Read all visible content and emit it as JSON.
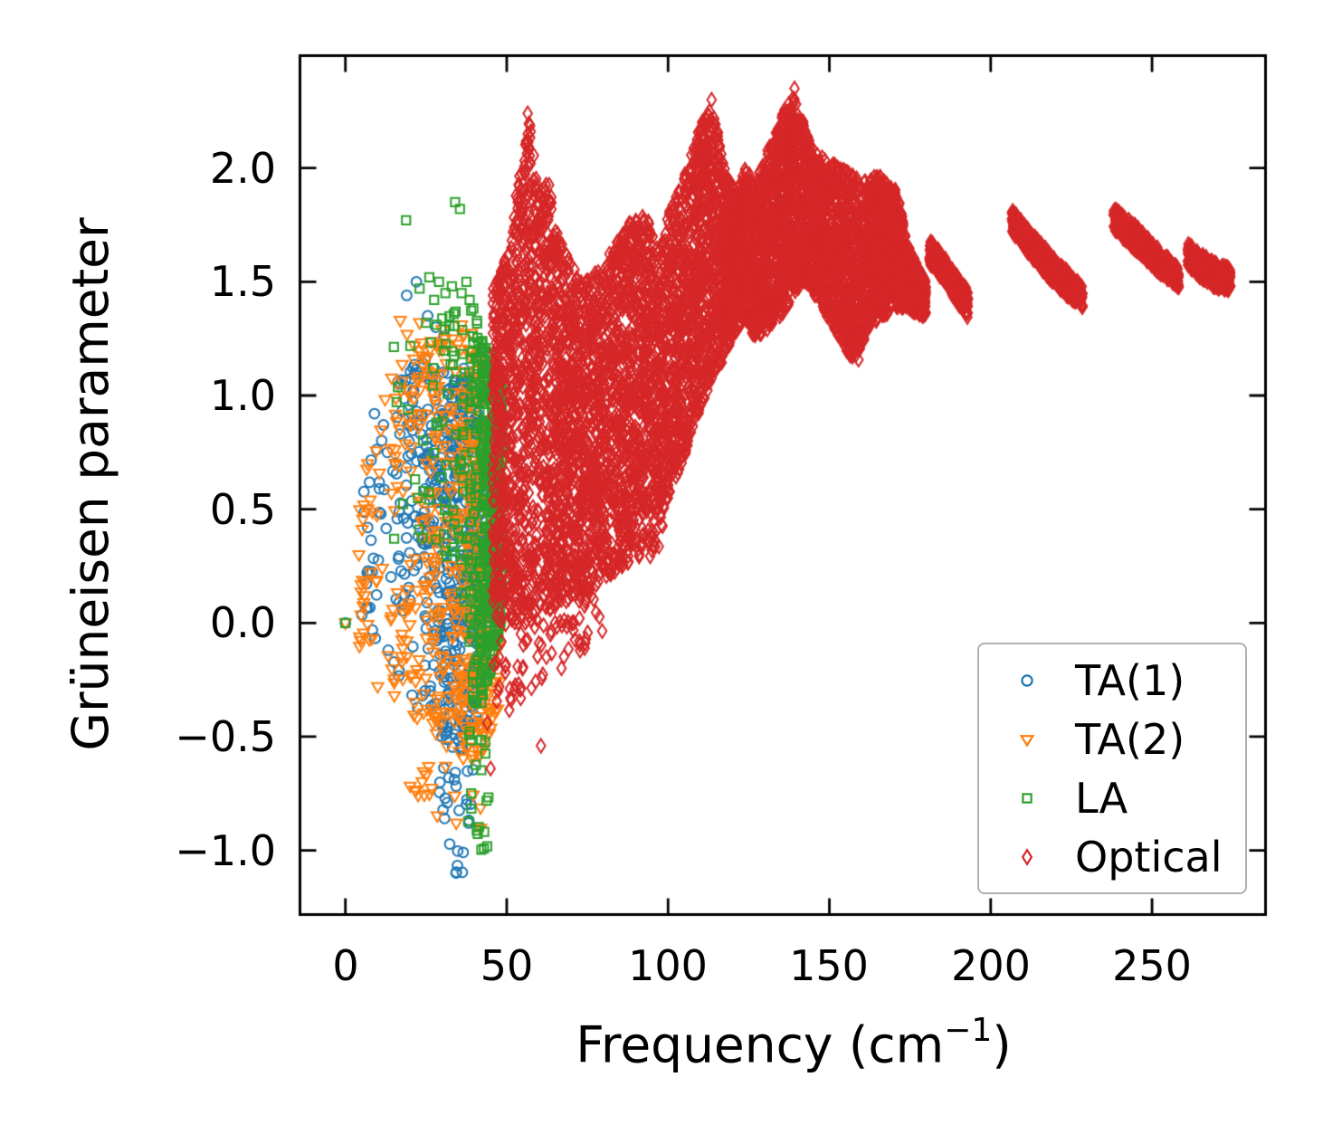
{
  "chart_data": {
    "type": "scatter",
    "title": "",
    "xlabel": {
      "prefix": "Frequency (cm",
      "sup": "−1",
      "suffix": ")"
    },
    "ylabel": "Grüneisen parameter",
    "axes": {
      "xlim": [
        -14.5,
        285.6
      ],
      "ylim": [
        -1.288,
        2.5
      ],
      "xticks": [
        0,
        50,
        100,
        150,
        200,
        250
      ],
      "xtick_labels": [
        "0",
        "50",
        "100",
        "150",
        "200",
        "250"
      ],
      "yticks": [
        2.0,
        1.5,
        1.0,
        0.5,
        0.0,
        -0.5,
        -1.0
      ],
      "ytick_labels": [
        "2.0",
        "1.5",
        "1.0",
        "0.5",
        "0.0",
        "−0.5",
        "−1.0"
      ],
      "grid": false,
      "tick_direction": "in",
      "spine_color": "#000000"
    },
    "legend": {
      "position": "lower right",
      "border_color": "#b0b0b0"
    },
    "series": [
      {
        "name": "TA(1)",
        "marker": "circle",
        "color": "#1f77b4",
        "seed": 7,
        "points": [
          [
            0,
            0
          ],
          [
            19,
            1.44
          ],
          [
            22,
            1.5
          ],
          [
            25.5,
            1.35
          ],
          [
            28,
            1.3
          ],
          [
            30.5,
            1.26
          ],
          [
            9,
            0.92
          ],
          [
            11,
            0.48
          ],
          [
            7.5,
            0.22
          ],
          [
            13,
            0.75
          ]
        ],
        "bands": [
          {
            "x": [
              5,
              15
            ],
            "lo": [
              0.0,
              -0.2
            ],
            "hi": [
              0.6,
              1.05
            ],
            "n": 30
          },
          {
            "x": [
              15,
              24
            ],
            "lo": [
              -0.2,
              -0.42
            ],
            "hi": [
              1.05,
              1.18
            ],
            "n": 75
          },
          {
            "x": [
              24,
              31
            ],
            "lo": [
              -0.42,
              -0.52
            ],
            "hi": [
              1.18,
              1.15
            ],
            "n": 120
          },
          {
            "x": [
              31,
              37
            ],
            "lo": [
              -0.55,
              -0.58
            ],
            "hi": [
              1.15,
              1.12
            ],
            "n": 170
          },
          {
            "x": [
              37,
              43.5
            ],
            "lo": [
              -0.58,
              -0.35
            ],
            "hi": [
              1.12,
              0.92
            ],
            "n": 175
          },
          {
            "x": [
              29,
              35,
              41
            ],
            "lo": [
              -0.8,
              -1.16,
              -1.0
            ],
            "hi": [
              -0.52,
              -0.6,
              -0.62
            ],
            "n": 26
          }
        ]
      },
      {
        "name": "TA(2)",
        "marker": "triangle-down",
        "color": "#ff7f0e",
        "seed": 13,
        "points": [
          [
            0,
            0
          ],
          [
            17,
            1.33
          ],
          [
            23,
            1.32
          ],
          [
            30,
            1.29
          ],
          [
            36,
            1.31
          ],
          [
            44,
            1.12
          ],
          [
            6,
            0.12
          ],
          [
            10,
            -0.28
          ],
          [
            47,
            0.8
          ]
        ],
        "bands": [
          {
            "x": [
              4,
              14
            ],
            "lo": [
              -0.1,
              -0.32
            ],
            "hi": [
              0.65,
              1.1
            ],
            "n": 35
          },
          {
            "x": [
              14,
              24
            ],
            "lo": [
              -0.35,
              -0.5
            ],
            "hi": [
              1.28,
              1.3
            ],
            "n": 80
          },
          {
            "x": [
              24,
              33
            ],
            "lo": [
              -0.5,
              -0.55
            ],
            "hi": [
              1.3,
              1.27
            ],
            "n": 110
          },
          {
            "x": [
              33,
              41
            ],
            "lo": [
              -0.58,
              -0.62
            ],
            "hi": [
              1.27,
              1.28
            ],
            "n": 170
          },
          {
            "x": [
              41,
              48
            ],
            "lo": [
              -0.62,
              -0.38
            ],
            "hi": [
              1.25,
              1.08
            ],
            "n": 210
          },
          {
            "x": [
              20,
              30,
              42
            ],
            "lo": [
              -0.75,
              -0.9,
              -1.02
            ],
            "hi": [
              -0.55,
              -0.62,
              -0.65
            ],
            "n": 18
          }
        ]
      },
      {
        "name": "LA",
        "marker": "square",
        "color": "#2ca02c",
        "seed": 23,
        "points": [
          [
            0,
            0
          ],
          [
            18.8,
            1.77
          ],
          [
            34,
            1.85
          ],
          [
            35.5,
            1.82
          ],
          [
            23,
            1.47
          ],
          [
            26,
            1.52
          ],
          [
            29,
            1.5
          ],
          [
            31,
            1.45
          ],
          [
            33,
            1.48
          ],
          [
            36,
            1.45
          ],
          [
            37.5,
            1.5
          ],
          [
            27.5,
            1.42
          ],
          [
            25,
            1.32
          ],
          [
            38.5,
            1.42
          ]
        ],
        "bands": [
          {
            "x": [
              14,
              26
            ],
            "lo": [
              0.3,
              0.38
            ],
            "hi": [
              1.22,
              1.3
            ],
            "n": 14
          },
          {
            "x": [
              26,
              33
            ],
            "lo": [
              0.32,
              0.28
            ],
            "hi": [
              1.42,
              1.4
            ],
            "n": 26
          },
          {
            "x": [
              33,
              38.5
            ],
            "lo": [
              0.18,
              -0.12
            ],
            "hi": [
              1.4,
              1.42
            ],
            "n": 40
          },
          {
            "x": [
              38.5,
              42
            ],
            "lo": [
              -0.3,
              -0.45
            ],
            "hi": [
              1.45,
              1.28
            ],
            "n": 90
          },
          {
            "x": [
              42,
              45.5
            ],
            "lo": [
              -0.4,
              -0.18
            ],
            "hi": [
              1.26,
              1.16
            ],
            "n": 240
          },
          {
            "x": [
              45.5,
              48.6
            ],
            "lo": [
              -0.18,
              0.0
            ],
            "hi": [
              1.16,
              1.05
            ],
            "n": 235
          },
          {
            "x": [
              38,
              44.5
            ],
            "lo": [
              -0.9,
              -1.07
            ],
            "hi": [
              -0.45,
              -0.5
            ],
            "n": 20
          }
        ]
      },
      {
        "name": "Optical",
        "marker": "diamond",
        "color": "#d62728",
        "seed": 42,
        "points": [
          [
            60.6,
            -0.54
          ],
          [
            45,
            -0.64
          ],
          [
            44,
            -0.44
          ],
          [
            139.2,
            2.35
          ],
          [
            56.5,
            2.24
          ],
          [
            113.5,
            2.3
          ]
        ],
        "bands": [
          {
            "x": [
              45.5,
              48,
              51,
              54,
              57,
              60,
              63,
              66,
              70,
              74,
              78,
              82,
              86,
              90,
              94,
              97,
              100,
              104,
              108,
              112,
              115,
              118,
              121,
              124,
              127,
              130,
              133,
              136,
              139,
              142,
              145,
              148,
              152,
              156,
              159,
              162,
              165,
              168,
              171,
              174,
              177,
              179.9
            ],
            "lo": [
              0.05,
              0.0,
              0.0,
              0.0,
              0.02,
              0.05,
              0.05,
              0.08,
              0.1,
              0.12,
              0.16,
              0.2,
              0.24,
              0.28,
              0.28,
              0.32,
              0.55,
              0.68,
              0.85,
              1.0,
              1.1,
              1.18,
              1.28,
              1.33,
              1.25,
              1.28,
              1.32,
              1.36,
              1.45,
              1.48,
              1.45,
              1.38,
              1.28,
              1.18,
              1.15,
              1.3,
              1.33,
              1.36,
              1.38,
              1.38,
              1.36,
              1.34
            ],
            "hi": [
              1.5,
              1.55,
              1.65,
              2.05,
              2.22,
              1.88,
              1.95,
              1.7,
              1.58,
              1.5,
              1.55,
              1.63,
              1.72,
              1.8,
              1.78,
              1.62,
              1.8,
              1.92,
              2.1,
              2.28,
              2.22,
              2.0,
              1.88,
              2.0,
              1.93,
              2.05,
              2.15,
              2.26,
              2.32,
              2.2,
              2.08,
              2.05,
              2.02,
              1.98,
              1.95,
              1.95,
              1.97,
              1.93,
              1.9,
              1.68,
              1.58,
              1.5
            ],
            "n": 7400
          },
          {
            "x": [
              45,
              60
            ],
            "lo": [
              -0.45,
              -0.28
            ],
            "hi": [
              0.05,
              0.02
            ],
            "n": 40
          },
          {
            "x": [
              60,
              80
            ],
            "lo": [
              -0.28,
              -0.05
            ],
            "hi": [
              0.06,
              0.16
            ],
            "n": 40
          },
          {
            "x": [
              181,
              185,
              189,
              193
            ],
            "lo": [
              1.58,
              1.51,
              1.42,
              1.34
            ],
            "hi": [
              1.69,
              1.62,
              1.54,
              1.46
            ],
            "n": 330
          },
          {
            "x": [
              206.5,
              213,
              220,
              228.5
            ],
            "lo": [
              1.72,
              1.6,
              1.48,
              1.38
            ],
            "hi": [
              1.82,
              1.71,
              1.6,
              1.48
            ],
            "n": 520
          },
          {
            "x": [
              238,
              244,
              251,
              258.3
            ],
            "lo": [
              1.73,
              1.65,
              1.55,
              1.47
            ],
            "hi": [
              1.83,
              1.76,
              1.66,
              1.56
            ],
            "n": 480
          },
          {
            "x": [
              261,
              265.5,
              270,
              274.3
            ],
            "lo": [
              1.57,
              1.51,
              1.47,
              1.46
            ],
            "hi": [
              1.67,
              1.62,
              1.58,
              1.56
            ],
            "n": 370
          }
        ]
      }
    ]
  }
}
